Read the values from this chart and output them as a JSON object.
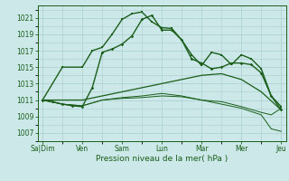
{
  "xlabel": "Pression niveau de la mer( hPa )",
  "ylim": [
    1006,
    1022.5
  ],
  "yticks": [
    1007,
    1009,
    1011,
    1013,
    1015,
    1017,
    1019,
    1021
  ],
  "bg_color": "#cce8e8",
  "grid_color": "#aacece",
  "line_color": "#1a5e1a",
  "day_labels": [
    "Sa|Dim",
    "Ven",
    "Sam",
    "Lun",
    "Mar",
    "Mer",
    "Jeu"
  ],
  "day_positions": [
    0,
    8,
    16,
    24,
    32,
    40,
    48
  ],
  "series1_x": [
    0,
    4,
    8,
    10,
    12,
    14,
    16,
    18,
    20,
    22,
    24,
    26,
    28,
    30,
    32,
    34,
    36,
    38,
    40,
    42,
    44,
    46,
    48
  ],
  "series1_y": [
    1011,
    1015,
    1015,
    1017,
    1017.4,
    1019,
    1020.8,
    1021.5,
    1021.7,
    1020.5,
    1019.8,
    1019.7,
    1018.3,
    1016.5,
    1015.2,
    1016.8,
    1016.5,
    1015.3,
    1016.5,
    1016,
    1014.8,
    1011.5,
    1010.2
  ],
  "series2_x": [
    0,
    2,
    4,
    6,
    8,
    10,
    12,
    14,
    16,
    18,
    20,
    22,
    24,
    26,
    28,
    30,
    32,
    34,
    36,
    38,
    40,
    42,
    44,
    46,
    48
  ],
  "series2_y": [
    1011,
    1010.8,
    1010.5,
    1010.3,
    1010.2,
    1012.5,
    1016.8,
    1017.2,
    1017.8,
    1018.8,
    1020.8,
    1021.3,
    1019.5,
    1019.5,
    1018.3,
    1016.0,
    1015.5,
    1014.8,
    1015.0,
    1015.5,
    1015.5,
    1015.3,
    1014.3,
    1011.5,
    1009.8
  ],
  "series3_x": [
    0,
    4,
    8,
    12,
    16,
    20,
    24,
    28,
    32,
    36,
    40,
    44,
    48
  ],
  "series3_y": [
    1011,
    1011,
    1011,
    1011.5,
    1012,
    1012.5,
    1013,
    1013.5,
    1014,
    1014.2,
    1013.5,
    1012,
    1009.8
  ],
  "series4_x": [
    0,
    4,
    8,
    12,
    16,
    20,
    24,
    28,
    32,
    36,
    40,
    44,
    46,
    48
  ],
  "series4_y": [
    1011,
    1010.5,
    1010.3,
    1011,
    1011.3,
    1011.5,
    1011.8,
    1011.5,
    1011.0,
    1010.8,
    1010.2,
    1009.5,
    1009.2,
    1010.0
  ],
  "series5_x": [
    0,
    4,
    8,
    12,
    16,
    20,
    24,
    28,
    32,
    36,
    40,
    44,
    46,
    48
  ],
  "series5_y": [
    1011,
    1010.5,
    1010.3,
    1011,
    1011.2,
    1011.3,
    1011.5,
    1011.4,
    1011.0,
    1010.5,
    1010.0,
    1009.2,
    1007.5,
    1007.2
  ]
}
